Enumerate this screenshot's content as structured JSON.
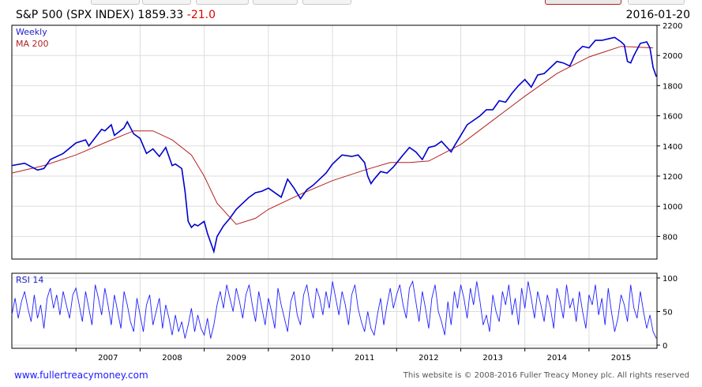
{
  "header": {
    "title": "S&P 500 (SPX INDEX) 1859.33",
    "change": "-21.0",
    "date": "2016-01-20"
  },
  "footer": {
    "site": "www.fullertreacymoney.com",
    "copyright": "This website is © 2008-2016 Fuller Treacy Money plc. All rights reserved"
  },
  "colors": {
    "price": "#0000cc",
    "ma": "#b22222",
    "rsi": "#2020ff",
    "grid": "#dddddd"
  },
  "chart_data": [
    {
      "type": "line",
      "legend": [
        "Weekly",
        "MA 200"
      ],
      "legend_position": "top-left",
      "ylim": [
        650,
        2200
      ],
      "yticks": [
        800,
        1000,
        1200,
        1400,
        1600,
        1800,
        2000,
        2200
      ],
      "x_tick_labels": [
        "2007",
        "2008",
        "2009",
        "2010",
        "2011",
        "2012",
        "2013",
        "2014",
        "2015"
      ],
      "xlim": [
        2006.0,
        2016.06
      ],
      "grid": true,
      "series": [
        {
          "name": "Weekly",
          "x": [
            2006.0,
            2006.2,
            2006.4,
            2006.5,
            2006.6,
            2006.8,
            2007.0,
            2007.15,
            2007.2,
            2007.4,
            2007.45,
            2007.55,
            2007.6,
            2007.75,
            2007.8,
            2007.9,
            2008.0,
            2008.1,
            2008.2,
            2008.3,
            2008.4,
            2008.5,
            2008.55,
            2008.65,
            2008.7,
            2008.75,
            2008.8,
            2008.85,
            2008.9,
            2009.0,
            2009.05,
            2009.1,
            2009.15,
            2009.2,
            2009.3,
            2009.4,
            2009.5,
            2009.6,
            2009.7,
            2009.8,
            2009.9,
            2010.0,
            2010.2,
            2010.3,
            2010.4,
            2010.5,
            2010.6,
            2010.7,
            2010.9,
            2011.0,
            2011.15,
            2011.3,
            2011.4,
            2011.5,
            2011.55,
            2011.6,
            2011.65,
            2011.75,
            2011.85,
            2011.95,
            2012.1,
            2012.2,
            2012.3,
            2012.4,
            2012.5,
            2012.6,
            2012.7,
            2012.85,
            2012.9,
            2013.0,
            2013.1,
            2013.3,
            2013.4,
            2013.5,
            2013.6,
            2013.7,
            2013.8,
            2013.9,
            2014.0,
            2014.1,
            2014.2,
            2014.3,
            2014.4,
            2014.5,
            2014.6,
            2014.7,
            2014.8,
            2014.9,
            2015.0,
            2015.1,
            2015.2,
            2015.3,
            2015.4,
            2015.5,
            2015.55,
            2015.6,
            2015.65,
            2015.7,
            2015.8,
            2015.9,
            2015.95,
            2016.0,
            2016.05
          ],
          "values": [
            1270,
            1285,
            1240,
            1250,
            1310,
            1350,
            1420,
            1440,
            1400,
            1510,
            1500,
            1540,
            1470,
            1520,
            1560,
            1480,
            1450,
            1350,
            1380,
            1330,
            1390,
            1270,
            1280,
            1250,
            1100,
            900,
            860,
            880,
            870,
            900,
            820,
            760,
            700,
            800,
            870,
            920,
            980,
            1020,
            1060,
            1090,
            1100,
            1120,
            1060,
            1180,
            1120,
            1050,
            1110,
            1140,
            1220,
            1280,
            1340,
            1330,
            1340,
            1290,
            1200,
            1150,
            1180,
            1230,
            1220,
            1260,
            1340,
            1390,
            1360,
            1310,
            1390,
            1400,
            1430,
            1360,
            1400,
            1470,
            1540,
            1600,
            1640,
            1640,
            1700,
            1690,
            1750,
            1800,
            1840,
            1790,
            1870,
            1880,
            1920,
            1960,
            1950,
            1930,
            2020,
            2060,
            2050,
            2100,
            2100,
            2110,
            2120,
            2090,
            2070,
            1960,
            1950,
            2000,
            2080,
            2090,
            2050,
            1920,
            1859
          ]
        },
        {
          "name": "MA 200",
          "x": [
            2006.0,
            2006.5,
            2007.0,
            2007.5,
            2007.9,
            2008.2,
            2008.5,
            2008.8,
            2009.0,
            2009.2,
            2009.5,
            2009.8,
            2010.0,
            2010.5,
            2011.0,
            2011.5,
            2011.9,
            2012.2,
            2012.5,
            2013.0,
            2013.5,
            2014.0,
            2014.5,
            2015.0,
            2015.5,
            2016.0
          ],
          "values": [
            1220,
            1270,
            1340,
            1430,
            1500,
            1500,
            1440,
            1340,
            1200,
            1020,
            880,
            920,
            980,
            1080,
            1170,
            1240,
            1290,
            1290,
            1300,
            1410,
            1570,
            1730,
            1880,
            1990,
            2060,
            2050
          ]
        }
      ]
    },
    {
      "type": "line",
      "legend": [
        "RSI 14"
      ],
      "legend_position": "top-left",
      "ylim": [
        0,
        100
      ],
      "yticks": [
        0,
        50,
        100
      ],
      "grid": true,
      "series": [
        {
          "name": "RSI 14",
          "x": [
            2006.0,
            2006.05,
            2006.1,
            2006.15,
            2006.2,
            2006.25,
            2006.3,
            2006.35,
            2006.4,
            2006.45,
            2006.5,
            2006.55,
            2006.6,
            2006.65,
            2006.7,
            2006.75,
            2006.8,
            2006.85,
            2006.9,
            2006.95,
            2007.0,
            2007.05,
            2007.1,
            2007.15,
            2007.2,
            2007.25,
            2007.3,
            2007.35,
            2007.4,
            2007.45,
            2007.5,
            2007.55,
            2007.6,
            2007.65,
            2007.7,
            2007.75,
            2007.8,
            2007.85,
            2007.9,
            2007.95,
            2008.0,
            2008.05,
            2008.1,
            2008.15,
            2008.2,
            2008.25,
            2008.3,
            2008.35,
            2008.4,
            2008.45,
            2008.5,
            2008.55,
            2008.6,
            2008.65,
            2008.7,
            2008.75,
            2008.8,
            2008.85,
            2008.9,
            2008.95,
            2009.0,
            2009.05,
            2009.1,
            2009.15,
            2009.2,
            2009.25,
            2009.3,
            2009.35,
            2009.4,
            2009.45,
            2009.5,
            2009.55,
            2009.6,
            2009.65,
            2009.7,
            2009.75,
            2009.8,
            2009.85,
            2009.9,
            2009.95,
            2010.0,
            2010.05,
            2010.1,
            2010.15,
            2010.2,
            2010.25,
            2010.3,
            2010.35,
            2010.4,
            2010.45,
            2010.5,
            2010.55,
            2010.6,
            2010.65,
            2010.7,
            2010.75,
            2010.8,
            2010.85,
            2010.9,
            2010.95,
            2011.0,
            2011.05,
            2011.1,
            2011.15,
            2011.2,
            2011.25,
            2011.3,
            2011.35,
            2011.4,
            2011.45,
            2011.5,
            2011.55,
            2011.6,
            2011.65,
            2011.7,
            2011.75,
            2011.8,
            2011.85,
            2011.9,
            2011.95,
            2012.0,
            2012.05,
            2012.1,
            2012.15,
            2012.2,
            2012.25,
            2012.3,
            2012.35,
            2012.4,
            2012.45,
            2012.5,
            2012.55,
            2012.6,
            2012.65,
            2012.7,
            2012.75,
            2012.8,
            2012.85,
            2012.9,
            2012.95,
            2013.0,
            2013.05,
            2013.1,
            2013.15,
            2013.2,
            2013.25,
            2013.3,
            2013.35,
            2013.4,
            2013.45,
            2013.5,
            2013.55,
            2013.6,
            2013.65,
            2013.7,
            2013.75,
            2013.8,
            2013.85,
            2013.9,
            2013.95,
            2014.0,
            2014.05,
            2014.1,
            2014.15,
            2014.2,
            2014.25,
            2014.3,
            2014.35,
            2014.4,
            2014.45,
            2014.5,
            2014.55,
            2014.6,
            2014.65,
            2014.7,
            2014.75,
            2014.8,
            2014.85,
            2014.9,
            2014.95,
            2015.0,
            2015.05,
            2015.1,
            2015.15,
            2015.2,
            2015.25,
            2015.3,
            2015.35,
            2015.4,
            2015.45,
            2015.5,
            2015.55,
            2015.6,
            2015.65,
            2015.7,
            2015.75,
            2015.8,
            2015.85,
            2015.9,
            2015.95,
            2016.0,
            2016.05
          ],
          "values": [
            45,
            70,
            40,
            65,
            80,
            55,
            35,
            75,
            40,
            60,
            25,
            70,
            85,
            55,
            75,
            45,
            80,
            60,
            40,
            75,
            85,
            60,
            35,
            80,
            55,
            30,
            90,
            70,
            45,
            85,
            60,
            30,
            75,
            50,
            25,
            80,
            60,
            35,
            20,
            70,
            45,
            20,
            60,
            75,
            30,
            50,
            70,
            25,
            60,
            40,
            15,
            45,
            20,
            35,
            10,
            30,
            55,
            20,
            45,
            25,
            15,
            40,
            10,
            30,
            60,
            80,
            55,
            90,
            70,
            50,
            85,
            65,
            40,
            75,
            90,
            60,
            35,
            80,
            55,
            30,
            70,
            50,
            25,
            85,
            60,
            40,
            20,
            65,
            80,
            45,
            30,
            75,
            90,
            60,
            40,
            85,
            70,
            45,
            80,
            55,
            95,
            70,
            45,
            80,
            60,
            30,
            75,
            90,
            55,
            35,
            20,
            50,
            25,
            15,
            45,
            70,
            30,
            60,
            85,
            55,
            75,
            90,
            60,
            40,
            85,
            95,
            65,
            35,
            80,
            55,
            25,
            70,
            90,
            50,
            35,
            15,
            65,
            30,
            80,
            55,
            90,
            70,
            40,
            85,
            60,
            95,
            65,
            30,
            45,
            20,
            75,
            50,
            35,
            80,
            60,
            90,
            45,
            70,
            30,
            85,
            55,
            95,
            70,
            40,
            80,
            60,
            35,
            75,
            55,
            25,
            85,
            65,
            40,
            90,
            55,
            70,
            35,
            80,
            50,
            25,
            75,
            60,
            90,
            45,
            70,
            30,
            85,
            50,
            20,
            40,
            75,
            60,
            35,
            90,
            55,
            40,
            80,
            50,
            25,
            45,
            20,
            10
          ]
        }
      ]
    }
  ]
}
